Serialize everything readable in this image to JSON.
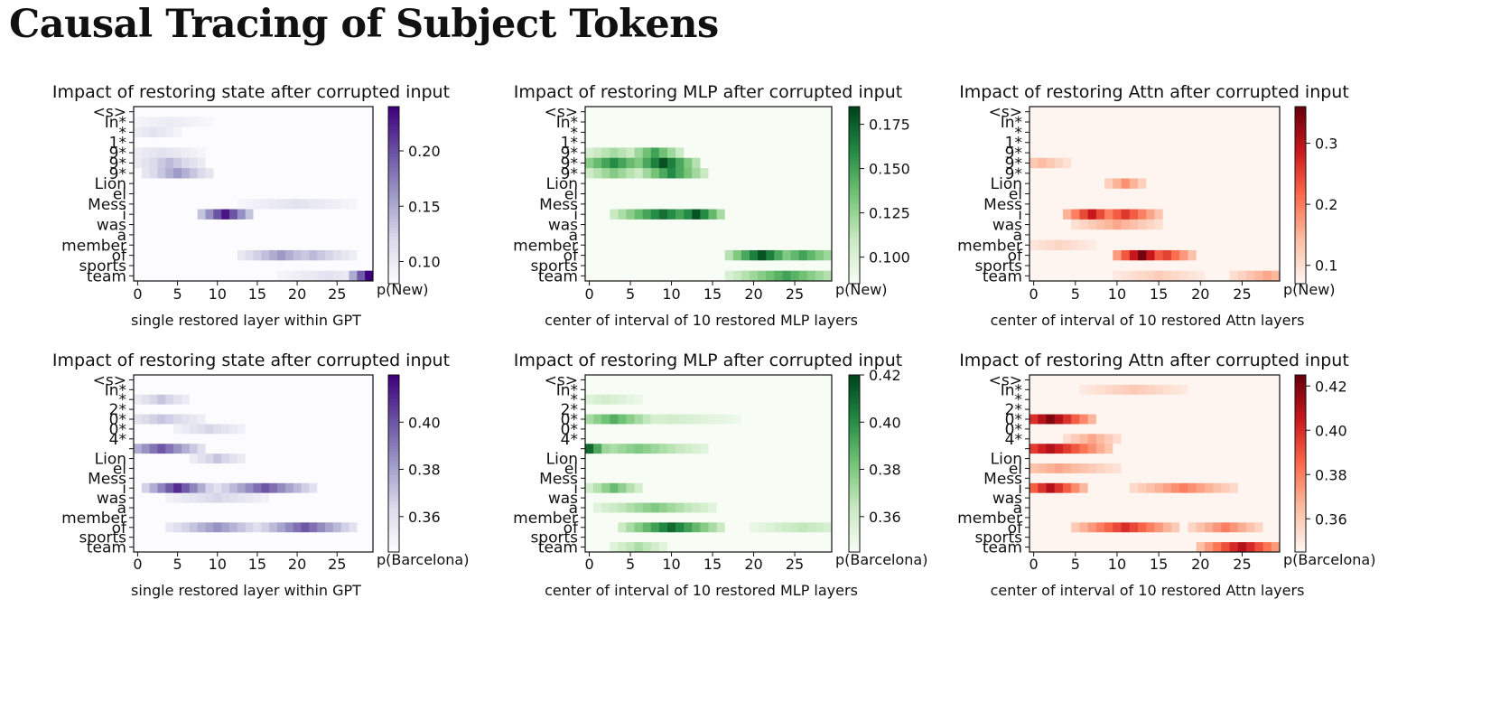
{
  "page": {
    "title": "Causal Tracing of Subject Tokens"
  },
  "chart_data": [
    {
      "type": "heatmap",
      "title": "Impact of restoring state after corrupted input",
      "xlabel": "single restored layer within GPT",
      "colorbar_label": "p(New)",
      "colormap": "Purples",
      "tokens": [
        "<s>",
        "In*",
        "*",
        "1*",
        "9*",
        "9*",
        "9*",
        "Lion",
        "el",
        "Mess",
        "i",
        "was",
        "a",
        "member",
        "of",
        "sports",
        "team"
      ],
      "xticks": [
        "0",
        "5",
        "10",
        "15",
        "20",
        "25"
      ],
      "layers": 30,
      "vmin": 0.08,
      "vmax": 0.24,
      "colorbar_ticks": [
        "0.10",
        "0.15",
        "0.20"
      ],
      "hotspots": [
        {
          "row": 1,
          "col": 4,
          "v": 0.1,
          "w": 5
        },
        {
          "row": 2,
          "col": 2,
          "v": 0.11,
          "w": 3
        },
        {
          "row": 4,
          "col": 3,
          "v": 0.11,
          "w": 5
        },
        {
          "row": 5,
          "col": 4,
          "v": 0.14,
          "w": 4
        },
        {
          "row": 6,
          "col": 5,
          "v": 0.16,
          "w": 4
        },
        {
          "row": 10,
          "col": 11,
          "v": 0.23,
          "w": 3
        },
        {
          "row": 9,
          "col": 20,
          "v": 0.11,
          "w": 7
        },
        {
          "row": 14,
          "col": 18,
          "v": 0.16,
          "w": 5
        },
        {
          "row": 14,
          "col": 22,
          "v": 0.14,
          "w": 5
        },
        {
          "row": 16,
          "col": 29,
          "v": 0.24,
          "w": 2
        },
        {
          "row": 16,
          "col": 24,
          "v": 0.11,
          "w": 6
        }
      ]
    },
    {
      "type": "heatmap",
      "title": "Impact of restoring MLP after corrupted input",
      "xlabel": "center of interval of 10 restored MLP layers",
      "colorbar_label": "p(New)",
      "colormap": "Greens",
      "tokens": [
        "<s>",
        "In*",
        "*",
        "1*",
        "9*",
        "9*",
        "9*",
        "Lion",
        "el",
        "Mess",
        "i",
        "was",
        "a",
        "member",
        "of",
        "sports",
        "team"
      ],
      "xticks": [
        "0",
        "5",
        "10",
        "15",
        "20",
        "25"
      ],
      "layers": 30,
      "vmin": 0.085,
      "vmax": 0.185,
      "colorbar_ticks": [
        "0.100",
        "0.125",
        "0.150",
        "0.175"
      ],
      "hotspots": [
        {
          "row": 4,
          "col": 3,
          "v": 0.12,
          "w": 4
        },
        {
          "row": 4,
          "col": 8,
          "v": 0.15,
          "w": 3
        },
        {
          "row": 5,
          "col": 3,
          "v": 0.16,
          "w": 5
        },
        {
          "row": 5,
          "col": 9,
          "v": 0.18,
          "w": 4
        },
        {
          "row": 6,
          "col": 3,
          "v": 0.13,
          "w": 4
        },
        {
          "row": 6,
          "col": 10,
          "v": 0.16,
          "w": 4
        },
        {
          "row": 10,
          "col": 9,
          "v": 0.17,
          "w": 6
        },
        {
          "row": 10,
          "col": 13,
          "v": 0.18,
          "w": 3
        },
        {
          "row": 14,
          "col": 21,
          "v": 0.18,
          "w": 4
        },
        {
          "row": 14,
          "col": 26,
          "v": 0.15,
          "w": 5
        },
        {
          "row": 16,
          "col": 24,
          "v": 0.15,
          "w": 7
        }
      ]
    },
    {
      "type": "heatmap",
      "title": "Impact of restoring Attn after corrupted input",
      "xlabel": "center of interval of 10 restored Attn layers",
      "colorbar_label": "p(New)",
      "colormap": "Reds",
      "tokens": [
        "<s>",
        "In*",
        "*",
        "1*",
        "9*",
        "9*",
        "9*",
        "Lion",
        "el",
        "Mess",
        "i",
        "was",
        "a",
        "member",
        "of",
        "sports",
        "team"
      ],
      "xticks": [
        "0",
        "5",
        "10",
        "15",
        "20",
        "25"
      ],
      "layers": 30,
      "vmin": 0.07,
      "vmax": 0.36,
      "colorbar_ticks": [
        "0.1",
        "0.2",
        "0.3"
      ],
      "hotspots": [
        {
          "row": 5,
          "col": 1,
          "v": 0.14,
          "w": 3
        },
        {
          "row": 7,
          "col": 11,
          "v": 0.18,
          "w": 2
        },
        {
          "row": 10,
          "col": 7,
          "v": 0.29,
          "w": 3
        },
        {
          "row": 10,
          "col": 11,
          "v": 0.26,
          "w": 4
        },
        {
          "row": 11,
          "col": 10,
          "v": 0.16,
          "w": 5
        },
        {
          "row": 13,
          "col": 3,
          "v": 0.11,
          "w": 4
        },
        {
          "row": 14,
          "col": 13,
          "v": 0.35,
          "w": 3
        },
        {
          "row": 14,
          "col": 16,
          "v": 0.25,
          "w": 3
        },
        {
          "row": 16,
          "col": 28,
          "v": 0.16,
          "w": 4
        },
        {
          "row": 16,
          "col": 15,
          "v": 0.12,
          "w": 5
        }
      ]
    },
    {
      "type": "heatmap",
      "title": "Impact of restoring state after corrupted input",
      "xlabel": "single restored layer within GPT",
      "colorbar_label": "p(Barcelona)",
      "colormap": "Purples",
      "tokens": [
        "<s>",
        "In*",
        "*",
        "2*",
        "0*",
        "0*",
        "4*",
        "",
        "Lion",
        "el",
        "Mess",
        "i",
        "was",
        "a",
        "member",
        "of",
        "sports",
        "team"
      ],
      "xticks": [
        "0",
        "5",
        "10",
        "15",
        "20",
        "25"
      ],
      "layers": 30,
      "vmin": 0.345,
      "vmax": 0.42,
      "colorbar_ticks": [
        "0.36",
        "0.38",
        "0.40"
      ],
      "hotspots": [
        {
          "row": 2,
          "col": 3,
          "v": 0.37,
          "w": 3
        },
        {
          "row": 4,
          "col": 3,
          "v": 0.37,
          "w": 5
        },
        {
          "row": 5,
          "col": 9,
          "v": 0.365,
          "w": 4
        },
        {
          "row": 7,
          "col": 3,
          "v": 0.4,
          "w": 5
        },
        {
          "row": 8,
          "col": 10,
          "v": 0.37,
          "w": 3
        },
        {
          "row": 11,
          "col": 5,
          "v": 0.41,
          "w": 4
        },
        {
          "row": 11,
          "col": 16,
          "v": 0.4,
          "w": 6
        },
        {
          "row": 12,
          "col": 10,
          "v": 0.365,
          "w": 6
        },
        {
          "row": 15,
          "col": 10,
          "v": 0.385,
          "w": 6
        },
        {
          "row": 15,
          "col": 21,
          "v": 0.4,
          "w": 6
        }
      ]
    },
    {
      "type": "heatmap",
      "title": "Impact of restoring MLP after corrupted input",
      "xlabel": "center of interval of 10 restored MLP layers",
      "colorbar_label": "p(Barcelona)",
      "colormap": "Greens",
      "tokens": [
        "<s>",
        "In*",
        "*",
        "2*",
        "0*",
        "0*",
        "4*",
        "",
        "Lion",
        "el",
        "Mess",
        "i",
        "was",
        "a",
        "member",
        "of",
        "sports",
        "team"
      ],
      "xticks": [
        "0",
        "5",
        "10",
        "15",
        "20",
        "25"
      ],
      "layers": 30,
      "vmin": 0.345,
      "vmax": 0.42,
      "colorbar_ticks": [
        "0.36",
        "0.38",
        "0.40",
        "0.42"
      ],
      "hotspots": [
        {
          "row": 2,
          "col": 2,
          "v": 0.36,
          "w": 4
        },
        {
          "row": 4,
          "col": 3,
          "v": 0.39,
          "w": 5
        },
        {
          "row": 4,
          "col": 10,
          "v": 0.36,
          "w": 8
        },
        {
          "row": 7,
          "col": 0,
          "v": 0.41,
          "w": 2
        },
        {
          "row": 7,
          "col": 6,
          "v": 0.38,
          "w": 8
        },
        {
          "row": 11,
          "col": 3,
          "v": 0.385,
          "w": 3
        },
        {
          "row": 13,
          "col": 8,
          "v": 0.38,
          "w": 7
        },
        {
          "row": 15,
          "col": 10,
          "v": 0.41,
          "w": 6
        },
        {
          "row": 15,
          "col": 26,
          "v": 0.365,
          "w": 6
        },
        {
          "row": 17,
          "col": 6,
          "v": 0.37,
          "w": 3
        }
      ]
    },
    {
      "type": "heatmap",
      "title": "Impact of restoring Attn after corrupted input",
      "xlabel": "center of interval of 10 restored Attn layers",
      "colorbar_label": "p(Barcelona)",
      "colormap": "Reds",
      "tokens": [
        "<s>",
        "In*",
        "*",
        "2*",
        "0*",
        "0*",
        "4*",
        "",
        "Lion",
        "el",
        "Mess",
        "i",
        "was",
        "a",
        "member",
        "of",
        "sports",
        "team"
      ],
      "xticks": [
        "0",
        "5",
        "10",
        "15",
        "20",
        "25"
      ],
      "layers": 30,
      "vmin": 0.345,
      "vmax": 0.425,
      "colorbar_ticks": [
        "0.36",
        "0.38",
        "0.40",
        "0.42"
      ],
      "hotspots": [
        {
          "row": 1,
          "col": 12,
          "v": 0.36,
          "w": 6
        },
        {
          "row": 4,
          "col": 2,
          "v": 0.42,
          "w": 5
        },
        {
          "row": 6,
          "col": 7,
          "v": 0.37,
          "w": 3
        },
        {
          "row": 7,
          "col": 2,
          "v": 0.41,
          "w": 7
        },
        {
          "row": 9,
          "col": 3,
          "v": 0.37,
          "w": 7
        },
        {
          "row": 11,
          "col": 2,
          "v": 0.41,
          "w": 4
        },
        {
          "row": 11,
          "col": 18,
          "v": 0.38,
          "w": 6
        },
        {
          "row": 15,
          "col": 11,
          "v": 0.4,
          "w": 6
        },
        {
          "row": 15,
          "col": 23,
          "v": 0.38,
          "w": 4
        },
        {
          "row": 17,
          "col": 25,
          "v": 0.41,
          "w": 5
        }
      ]
    }
  ]
}
